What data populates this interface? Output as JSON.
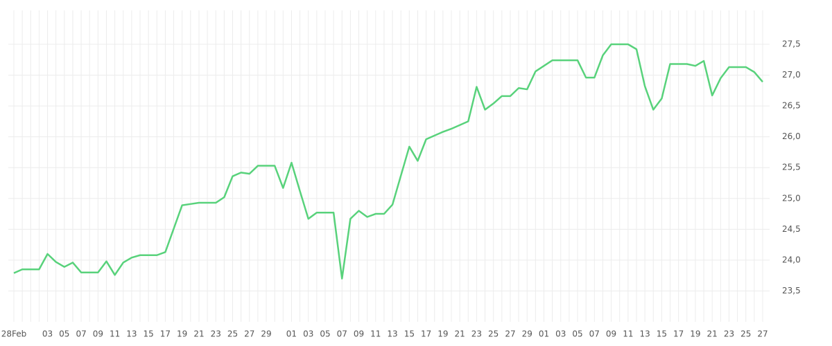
{
  "chart_data": {
    "type": "line",
    "categories": [
      "28Feb",
      null,
      null,
      null,
      "03",
      null,
      "05",
      null,
      "07",
      null,
      "09",
      null,
      "11",
      null,
      "13",
      null,
      "15",
      null,
      "17",
      null,
      "19",
      null,
      "21",
      null,
      "23",
      null,
      "25",
      null,
      "27",
      null,
      "29",
      null,
      null,
      "01",
      null,
      "03",
      null,
      "05",
      null,
      "07",
      null,
      "09",
      null,
      "11",
      null,
      "13",
      null,
      "15",
      null,
      "17",
      null,
      "19",
      null,
      "21",
      null,
      "23",
      null,
      "25",
      null,
      "27",
      null,
      "29",
      null,
      "01",
      null,
      "03",
      null,
      "05",
      null,
      "07",
      null,
      "09",
      null,
      "11",
      null,
      "13",
      null,
      "15",
      null,
      "17",
      null,
      "19",
      null,
      "21",
      null,
      "23",
      null,
      "25",
      null,
      "27"
    ],
    "values": [
      23.79,
      23.85,
      23.85,
      23.85,
      24.1,
      23.97,
      23.89,
      23.96,
      23.8,
      23.8,
      23.8,
      23.98,
      23.76,
      23.96,
      24.04,
      24.08,
      24.08,
      24.08,
      24.13,
      24.51,
      24.89,
      24.91,
      24.93,
      24.93,
      24.93,
      25.02,
      25.36,
      25.42,
      25.4,
      25.53,
      25.53,
      25.53,
      25.17,
      25.58,
      25.12,
      24.67,
      24.77,
      24.77,
      24.77,
      23.7,
      24.67,
      24.8,
      24.7,
      24.75,
      24.75,
      24.9,
      25.37,
      25.84,
      25.61,
      25.96,
      26.02,
      26.08,
      26.13,
      26.19,
      26.25,
      26.81,
      26.44,
      26.54,
      26.66,
      26.66,
      26.79,
      26.77,
      27.06,
      27.15,
      27.24,
      27.24,
      27.24,
      27.24,
      26.96,
      26.96,
      27.32,
      27.5,
      27.5,
      27.5,
      27.42,
      26.82,
      26.44,
      26.62,
      27.18,
      27.18,
      27.18,
      27.15,
      27.23,
      26.67,
      26.95,
      27.13,
      27.13,
      27.13,
      27.05,
      26.89
    ],
    "color": "#58d27b",
    "ylim": [
      23.0,
      28.05
    ],
    "yticks": [
      {
        "value": 23.5,
        "label": "23,5"
      },
      {
        "value": 24.0,
        "label": "24,0"
      },
      {
        "value": 24.5,
        "label": "24,5"
      },
      {
        "value": 25.0,
        "label": "25,0"
      },
      {
        "value": 25.5,
        "label": "25,5"
      },
      {
        "value": 26.0,
        "label": "26,0"
      },
      {
        "value": 26.5,
        "label": "26,5"
      },
      {
        "value": 27.0,
        "label": "27,0"
      },
      {
        "value": 27.5,
        "label": "27,5"
      }
    ],
    "grid": true
  }
}
